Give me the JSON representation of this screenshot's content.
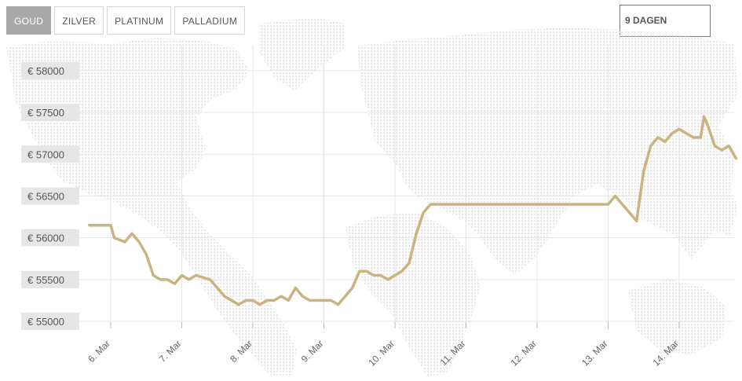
{
  "metal_tabs": [
    {
      "label": "GOUD",
      "active": true
    },
    {
      "label": "ZILVER",
      "active": false
    },
    {
      "label": "PLATINUM",
      "active": false
    },
    {
      "label": "PALLADIUM",
      "active": false
    }
  ],
  "range_select": {
    "label": "9 DAGEN"
  },
  "colors": {
    "line": "#c9b380",
    "grid": "#e6e6e6",
    "label_bg": "#e6e6e6",
    "map_dots": "#e9e9e9"
  },
  "chart_data": {
    "type": "line",
    "title": "",
    "xlabel": "",
    "ylabel": "",
    "currency_prefix": "€",
    "ylim": [
      54850,
      58300
    ],
    "y_ticks": [
      58000,
      57500,
      57000,
      56500,
      56000,
      55500,
      55000
    ],
    "y_tick_labels": [
      "€ 58000",
      "€ 57500",
      "€ 57000",
      "€ 56500",
      "€ 56000",
      "€ 55500",
      "€ 55000"
    ],
    "x_ticks": [
      "6. Mar",
      "7. Mar",
      "8. Mar",
      "9. Mar",
      "10. Mar",
      "11. Mar",
      "12. Mar",
      "13. Mar",
      "14. Mar"
    ],
    "grid": true,
    "series": [
      {
        "values": [
          [
            5.7,
            56150
          ],
          [
            5.9,
            56150
          ],
          [
            6.0,
            56150
          ],
          [
            6.05,
            56000
          ],
          [
            6.2,
            55950
          ],
          [
            6.3,
            56050
          ],
          [
            6.4,
            55950
          ],
          [
            6.5,
            55800
          ],
          [
            6.6,
            55550
          ],
          [
            6.7,
            55500
          ],
          [
            6.8,
            55500
          ],
          [
            6.9,
            55450
          ],
          [
            7.0,
            55550
          ],
          [
            7.1,
            55500
          ],
          [
            7.2,
            55550
          ],
          [
            7.4,
            55500
          ],
          [
            7.6,
            55300
          ],
          [
            7.7,
            55250
          ],
          [
            7.8,
            55200
          ],
          [
            7.9,
            55250
          ],
          [
            8.0,
            55250
          ],
          [
            8.1,
            55200
          ],
          [
            8.2,
            55250
          ],
          [
            8.3,
            55250
          ],
          [
            8.4,
            55300
          ],
          [
            8.5,
            55250
          ],
          [
            8.6,
            55400
          ],
          [
            8.7,
            55300
          ],
          [
            8.8,
            55250
          ],
          [
            8.9,
            55250
          ],
          [
            9.0,
            55250
          ],
          [
            9.1,
            55250
          ],
          [
            9.2,
            55200
          ],
          [
            9.3,
            55300
          ],
          [
            9.4,
            55400
          ],
          [
            9.5,
            55600
          ],
          [
            9.6,
            55600
          ],
          [
            9.7,
            55550
          ],
          [
            9.8,
            55550
          ],
          [
            9.9,
            55500
          ],
          [
            10.0,
            55550
          ],
          [
            10.1,
            55600
          ],
          [
            10.2,
            55700
          ],
          [
            10.3,
            56050
          ],
          [
            10.4,
            56300
          ],
          [
            10.5,
            56400
          ],
          [
            10.6,
            56400
          ],
          [
            11.0,
            56400
          ],
          [
            11.5,
            56400
          ],
          [
            12.0,
            56400
          ],
          [
            12.4,
            56400
          ],
          [
            12.8,
            56400
          ],
          [
            13.0,
            56400
          ],
          [
            13.1,
            56500
          ],
          [
            13.2,
            56400
          ],
          [
            13.3,
            56300
          ],
          [
            13.4,
            56200
          ],
          [
            13.5,
            56800
          ],
          [
            13.6,
            57100
          ],
          [
            13.7,
            57200
          ],
          [
            13.8,
            57150
          ],
          [
            13.9,
            57250
          ],
          [
            14.0,
            57300
          ],
          [
            14.1,
            57250
          ],
          [
            14.2,
            57200
          ],
          [
            14.3,
            57200
          ],
          [
            14.35,
            57450
          ],
          [
            14.4,
            57350
          ],
          [
            14.5,
            57100
          ],
          [
            14.6,
            57050
          ],
          [
            14.7,
            57100
          ],
          [
            14.8,
            56950
          ]
        ]
      }
    ]
  }
}
